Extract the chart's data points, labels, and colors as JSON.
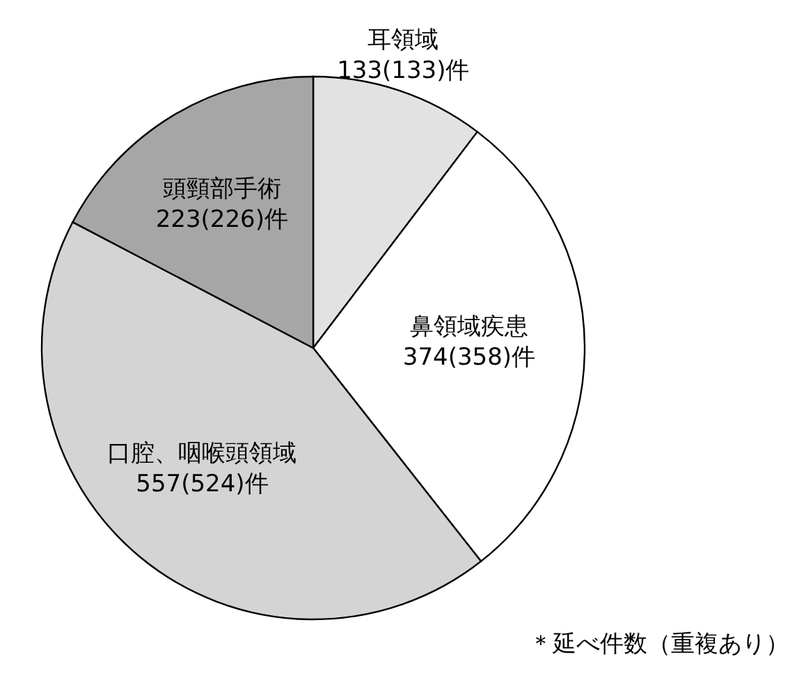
{
  "chart_data": {
    "type": "pie",
    "categories": [
      "耳領域",
      "鼻領域疾患",
      "口腔、咽喉頭領域",
      "頭頸部手術"
    ],
    "values": [
      133,
      374,
      557,
      223
    ],
    "value_labels": [
      "133(133)件",
      "374(358)件",
      "557(524)件",
      "223(226)件"
    ],
    "colors": [
      "#e2e2e2",
      "#ffffff",
      "#d4d4d4",
      "#a6a6a6"
    ],
    "annotations": [
      "＊延べ件数（重複あり）"
    ]
  }
}
